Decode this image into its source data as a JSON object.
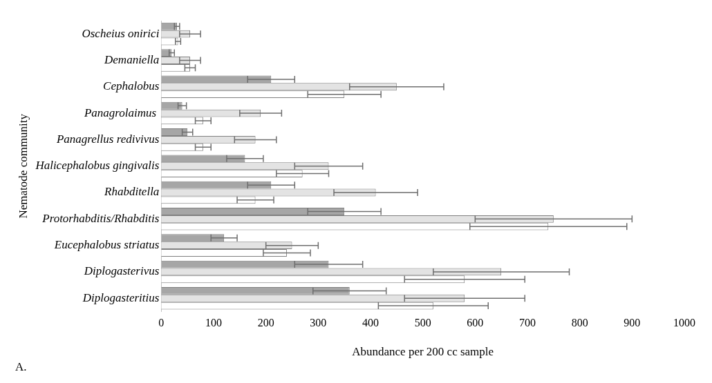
{
  "chart_data": {
    "type": "bar",
    "orientation": "horizontal",
    "xlabel": "Abundance per 200 cc sample",
    "ylabel": "Nematode community",
    "annotations": [
      "A."
    ],
    "categories": [
      "Oscheius onirici",
      "Demaniella",
      "Cephalobus",
      "Panagrolaimus ",
      "Panagrellus redivivus",
      "Halicephalobus gingivalis",
      "Rhabditella",
      "Protorhabditis/Rhabditis",
      "Eucephalobus striatus",
      "Diplogasterivus",
      "Diplogasteritius"
    ],
    "series": [
      {
        "color": "#a6a6a6",
        "values": [
          30,
          20,
          210,
          40,
          50,
          160,
          210,
          350,
          120,
          320,
          360
        ],
        "errors": [
          5,
          5,
          45,
          8,
          10,
          35,
          45,
          70,
          25,
          65,
          70
        ]
      },
      {
        "color": "#e3e3e3",
        "values": [
          55,
          55,
          450,
          190,
          180,
          320,
          410,
          750,
          250,
          650,
          580
        ],
        "errors": [
          20,
          20,
          90,
          40,
          40,
          65,
          80,
          150,
          50,
          130,
          115
        ]
      },
      {
        "color": "#ffffff",
        "values": [
          32,
          55,
          350,
          80,
          80,
          270,
          180,
          740,
          240,
          580,
          520
        ],
        "errors": [
          5,
          10,
          70,
          15,
          15,
          50,
          35,
          150,
          45,
          115,
          105
        ]
      }
    ],
    "xlim": [
      0,
      1000
    ],
    "xticks": [
      0,
      100,
      200,
      300,
      400,
      500,
      600,
      700,
      800,
      900,
      1000
    ],
    "grid": false,
    "legend": false
  }
}
